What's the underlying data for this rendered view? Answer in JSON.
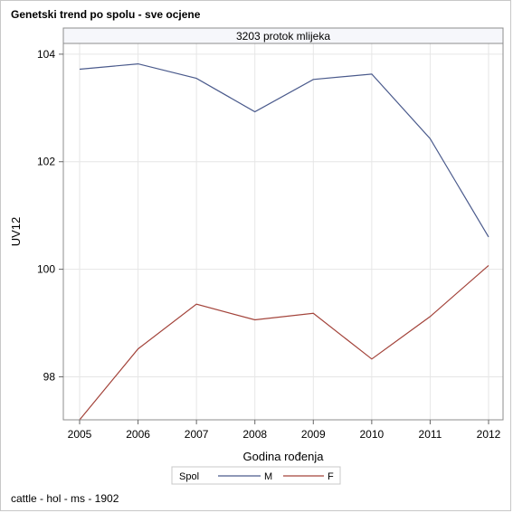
{
  "title": "Genetski trend po spolu - sve ocjene",
  "footnote": "cattle - hol - ms - 1902",
  "colors": {
    "M": "#4a5a8c",
    "F": "#a3433a",
    "grid": "#e6e6e6",
    "frame": "#8c8c8c"
  },
  "chart_data": {
    "type": "line",
    "panel_label": "3203 protok mlijeka",
    "xlabel": "Godina rođenja",
    "ylabel": "UV12",
    "x": [
      2005,
      2006,
      2007,
      2008,
      2009,
      2010,
      2011,
      2012
    ],
    "x_ticks": [
      "2005",
      "2006",
      "2007",
      "2008",
      "2009",
      "2010",
      "2011",
      "2012"
    ],
    "y_ticks": [
      98,
      100,
      102,
      104
    ],
    "ylim": [
      97.2,
      104.2
    ],
    "grid": true,
    "legend": {
      "title": "Spol",
      "placement": "bottom-center"
    },
    "series": [
      {
        "name": "M",
        "values": [
          103.72,
          103.82,
          103.55,
          102.93,
          103.53,
          103.63,
          102.43,
          100.6
        ]
      },
      {
        "name": "F",
        "values": [
          97.2,
          98.52,
          99.35,
          99.06,
          99.18,
          98.33,
          99.12,
          100.07
        ]
      }
    ]
  }
}
